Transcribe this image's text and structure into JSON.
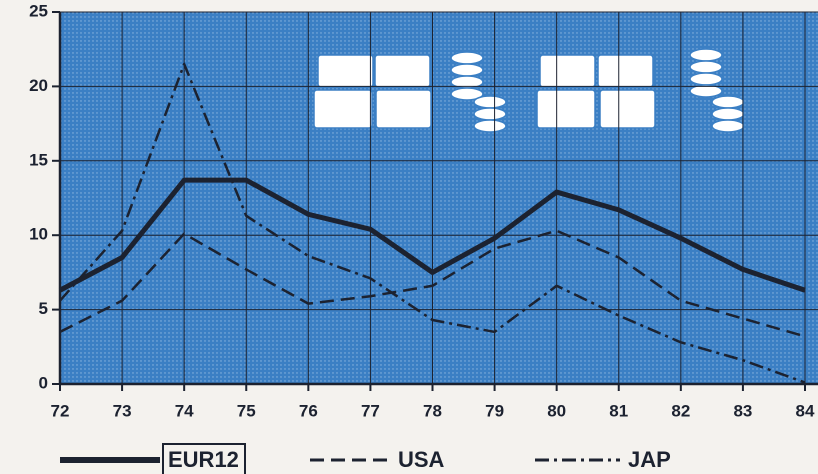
{
  "chart_data": {
    "type": "line",
    "categories": [
      "72",
      "73",
      "74",
      "75",
      "76",
      "77",
      "78",
      "79",
      "80",
      "81",
      "82",
      "83",
      "84"
    ],
    "series": [
      {
        "name": "EUR12",
        "color": "#1c2230",
        "style": "solid",
        "values": [
          6.3,
          8.5,
          13.7,
          13.7,
          11.4,
          10.4,
          7.5,
          9.8,
          12.9,
          11.7,
          9.8,
          7.7,
          6.3
        ]
      },
      {
        "name": "USA",
        "color": "#1c2230",
        "style": "dashed",
        "values": [
          3.5,
          5.6,
          10.1,
          7.7,
          5.4,
          5.9,
          6.6,
          9.1,
          10.3,
          8.5,
          5.6,
          4.4,
          3.2
        ]
      },
      {
        "name": "JAP",
        "color": "#1c2230",
        "style": "dashdot",
        "values": [
          5.6,
          10.3,
          21.5,
          11.3,
          8.6,
          7.1,
          4.3,
          3.5,
          6.6,
          4.6,
          2.8,
          1.6,
          0.1
        ]
      }
    ],
    "ylim": [
      0,
      25
    ],
    "yticks": [
      0,
      5,
      10,
      15,
      20,
      25
    ],
    "grid": true
  }
}
